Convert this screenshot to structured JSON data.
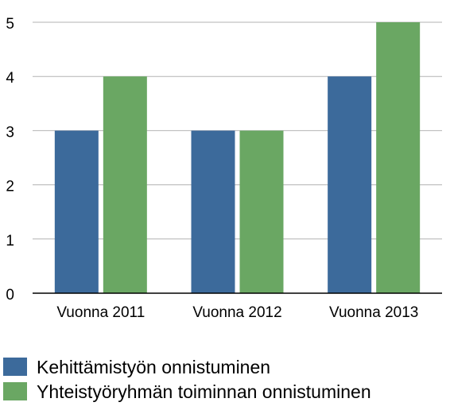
{
  "chart_data": {
    "type": "bar",
    "categories": [
      "Vuonna 2011",
      "Vuonna 2012",
      "Vuonna 2013"
    ],
    "series": [
      {
        "name": "Kehittämistyön onnistuminen",
        "values": [
          3,
          3,
          4
        ],
        "color": "#3c6a9b"
      },
      {
        "name": "Yhteistyöryhmän toiminnan onnistuminen",
        "values": [
          4,
          3,
          5
        ],
        "color": "#6aa763"
      }
    ],
    "ylim": [
      0,
      5
    ],
    "yticks": [
      0,
      1,
      2,
      3,
      4,
      5
    ],
    "grid": true,
    "legend_position": "bottom",
    "title": "",
    "xlabel": "",
    "ylabel": ""
  }
}
